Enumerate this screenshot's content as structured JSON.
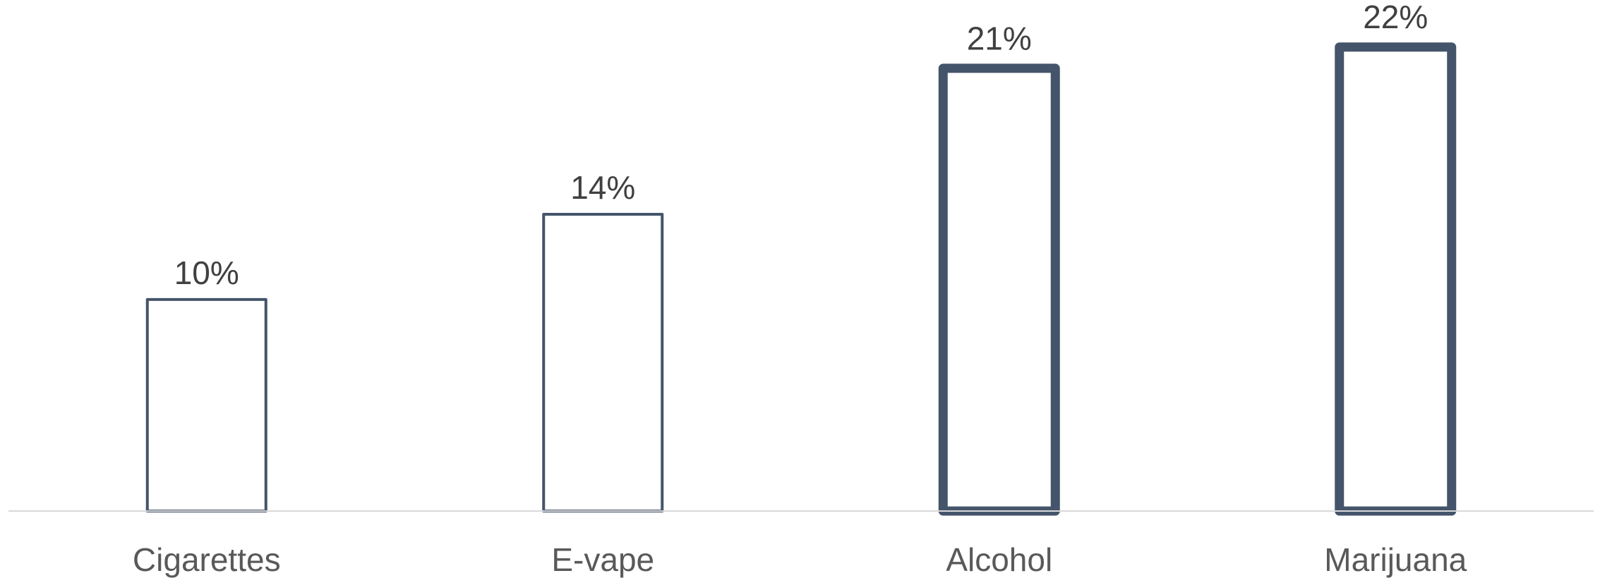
{
  "chart_data": {
    "type": "bar",
    "categories": [
      "Cigarettes",
      "E-vape",
      "Alcohol",
      "Marijuana"
    ],
    "values": [
      10,
      14,
      21,
      22
    ],
    "data_labels": [
      "10%",
      "14%",
      "21%",
      "22%"
    ],
    "value_unit": "%",
    "ylim": [
      0,
      23
    ],
    "grid": false,
    "legend": "none",
    "emphasized": [
      false,
      false,
      true,
      true
    ],
    "colors": {
      "bar_outline": "#44546a",
      "bar_fill": "#ffffff",
      "axis_line": "#d9d9d9",
      "data_label": "#404040",
      "category_label": "#595959"
    }
  }
}
